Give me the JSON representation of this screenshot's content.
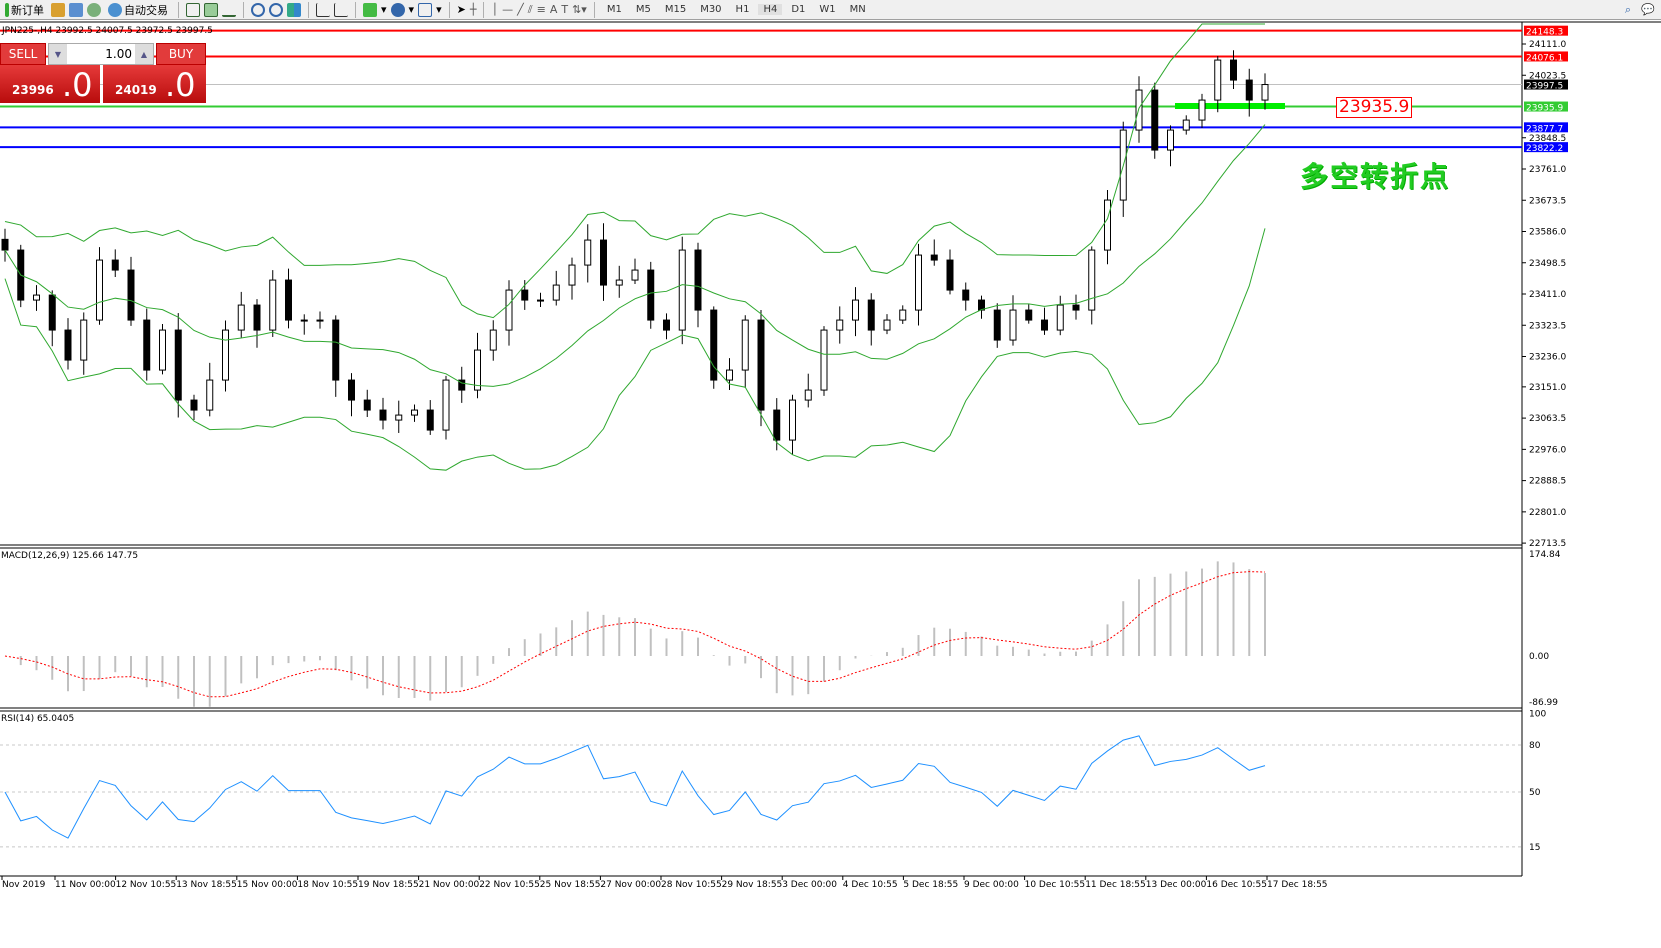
{
  "toolbar": {
    "new_order": "新订单",
    "auto_trading": "自动交易",
    "icons": [
      "new-order-icon",
      "market-watch-icon",
      "data-window-icon",
      "navigator-icon",
      "auto-trading-icon",
      "bar-chart-icon",
      "candlestick-icon",
      "line-chart-icon",
      "zoom-in-icon",
      "zoom-out-icon",
      "tile-windows-icon",
      "chart-shift-icon",
      "autoscroll-icon",
      "indicators-icon",
      "periods-icon",
      "templates-icon",
      "cursor-icon",
      "crosshair-icon",
      "vertical-line-icon",
      "horizontal-line-icon",
      "trendline-icon",
      "equidistant-channel-icon",
      "fibonacci-icon",
      "text-icon",
      "text-label-icon",
      "arrows-icon"
    ],
    "timeframes": [
      "M1",
      "M5",
      "M15",
      "M30",
      "H1",
      "H4",
      "D1",
      "W1",
      "MN"
    ],
    "active_timeframe": "H4"
  },
  "chart": {
    "info": "JPN225-,H4  23992.5 24007.5 23972.5 23997.5",
    "symbol": "JPN225-",
    "timeframe": "H4",
    "annotation_price": "23935.9",
    "annotation_text": "多空转折点"
  },
  "trade": {
    "sell": "SELL",
    "buy": "BUY",
    "lot": "1.00",
    "bid_main": "23996",
    "bid_big": ".0",
    "ask_main": "24019",
    "ask_big": ".0"
  },
  "levels": [
    {
      "price": "24148.3",
      "color": "#ff0000"
    },
    {
      "price": "24076.1",
      "color": "#ff0000"
    },
    {
      "price": "23997.5",
      "color": "#000000"
    },
    {
      "price": "23935.9",
      "color": "#33cc33"
    },
    {
      "price": "23877.7",
      "color": "#0000ff"
    },
    {
      "price": "23822.2",
      "color": "#0000ff"
    }
  ],
  "price_axis": [
    "24111.0",
    "24023.5",
    "23848.5",
    "23761.0",
    "23673.5",
    "23586.0",
    "23498.5",
    "23411.0",
    "23323.5",
    "23236.0",
    "23151.0",
    "23063.5",
    "22976.0",
    "22888.5",
    "22801.0",
    "22713.5"
  ],
  "time_axis": [
    "Nov 2019",
    "11 Nov 00:00",
    "12 Nov 10:55",
    "13 Nov 18:55",
    "15 Nov 00:00",
    "18 Nov 10:55",
    "19 Nov 18:55",
    "21 Nov 00:00",
    "22 Nov 10:55",
    "25 Nov 18:55",
    "27 Nov 00:00",
    "28 Nov 10:55",
    "29 Nov 18:55",
    "3 Dec 00:00",
    "4 Dec 10:55",
    "5 Dec 18:55",
    "9 Dec 00:00",
    "10 Dec 10:55",
    "11 Dec 18:55",
    "13 Dec 00:00",
    "16 Dec 10:55",
    "17 Dec 18:55"
  ],
  "macd": {
    "label": "MACD(12,26,9) 125.66 147.75",
    "axis": [
      "174.84",
      "0.00",
      "-86.99"
    ]
  },
  "rsi": {
    "label": "RSI(14) 65.0405",
    "axis": [
      "100",
      "80",
      "50",
      "15"
    ]
  },
  "chart_data": {
    "type": "candlestick",
    "closes": [
      23534,
      23394,
      23408,
      23310,
      23226,
      23338,
      23506,
      23478,
      23338,
      23198,
      23310,
      23114,
      23086,
      23170,
      23310,
      23380,
      23310,
      23450,
      23338,
      23338,
      23338,
      23170,
      23114,
      23086,
      23058,
      23072,
      23086,
      23030,
      23170,
      23142,
      23254,
      23310,
      23422,
      23394,
      23394,
      23436,
      23492,
      23562,
      23436,
      23450,
      23478,
      23338,
      23310,
      23534,
      23366,
      23170,
      23198,
      23338,
      23086,
      23002,
      23114,
      23142,
      23310,
      23338,
      23394,
      23310,
      23338,
      23366,
      23520,
      23506,
      23422,
      23394,
      23366,
      23282,
      23366,
      23338,
      23310,
      23380,
      23366,
      23534,
      23674,
      23870,
      23982,
      23814,
      23870,
      23898,
      23954,
      24066,
      24010,
      23954,
      23997.5
    ]
  }
}
